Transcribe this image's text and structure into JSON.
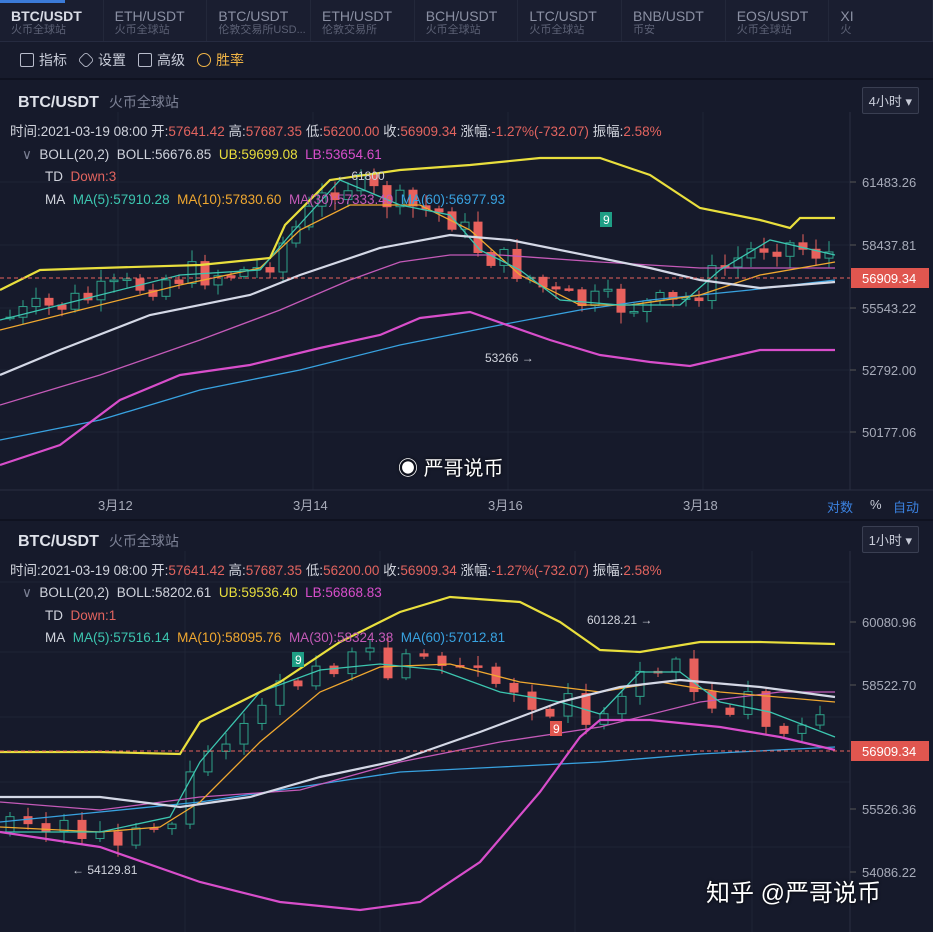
{
  "tabs": [
    {
      "pair": "BTC/USDT",
      "exchange": "火币全球站",
      "active": true
    },
    {
      "pair": "ETH/USDT",
      "exchange": "火币全球站"
    },
    {
      "pair": "BTC/USDT",
      "exchange": "伦敦交易所USD..."
    },
    {
      "pair": "ETH/USDT",
      "exchange": "伦敦交易所"
    },
    {
      "pair": "BCH/USDT",
      "exchange": "火币全球站"
    },
    {
      "pair": "LTC/USDT",
      "exchange": "火币全球站"
    },
    {
      "pair": "BNB/USDT",
      "exchange": "币安"
    },
    {
      "pair": "EOS/USDT",
      "exchange": "火币全球站"
    },
    {
      "pair": "XI",
      "exchange": "火"
    }
  ],
  "toolbar": {
    "indicators": "指标",
    "settings": "设置",
    "advanced": "高级",
    "winrate": "胜率"
  },
  "top": {
    "pair": "BTC/USDT",
    "exchange": "火币全球站",
    "period": "4小时",
    "time_label": "时间:",
    "time": "2021-03-19 08:00",
    "open_label": "开:",
    "open": "57641.42",
    "high_label": "高:",
    "high": "57687.35",
    "low_label": "低:",
    "low": "56200.00",
    "close_label": "收:",
    "close": "56909.34",
    "chg_label": "涨幅:",
    "chg": "-1.27%(-732.07)",
    "amp_label": "振幅:",
    "amp": "2.58%",
    "boll_name": "BOLL(20,2)",
    "boll": "BOLL:56676.85",
    "ub": "UB:59699.08",
    "lb": "LB:53654.61",
    "td_name": "TD",
    "td": "Down:3",
    "ma_name": "MA",
    "ma5": "MA(5):57910.28",
    "ma10": "MA(10):57830.60",
    "ma30": "MA(30):57333.40",
    "ma60": "MA(60):56977.93",
    "price_ticks": [
      "61483.26",
      "58437.81",
      "55543.22",
      "52792.00",
      "50177.06"
    ],
    "current_price": "56909.34",
    "x_ticks": [
      "3月12",
      "3月14",
      "3月16",
      "3月18"
    ],
    "high_marker": "← 61800",
    "low_marker": "53266 →",
    "td_badge": "9",
    "log": "对数",
    "pct": "%",
    "auto": "自动",
    "watermark": "严哥说币"
  },
  "bottom": {
    "pair": "BTC/USDT",
    "exchange": "火币全球站",
    "period": "1小时",
    "time_label": "时间:",
    "time": "2021-03-19 08:00",
    "open_label": "开:",
    "open": "57641.42",
    "high_label": "高:",
    "high": "57687.35",
    "low_label": "低:",
    "low": "56200.00",
    "close_label": "收:",
    "close": "56909.34",
    "chg_label": "涨幅:",
    "chg": "-1.27%(-732.07)",
    "amp_label": "振幅:",
    "amp": "2.58%",
    "boll_name": "BOLL(20,2)",
    "boll": "BOLL:58202.61",
    "ub": "UB:59536.40",
    "lb": "LB:56868.83",
    "td_name": "TD",
    "td": "Down:1",
    "ma_name": "MA",
    "ma5": "MA(5):57516.14",
    "ma10": "MA(10):58095.76",
    "ma30": "MA(30):58324.38",
    "ma60": "MA(60):57012.81",
    "price_ticks": [
      "60080.96",
      "58522.70",
      "55526.36",
      "54086.22"
    ],
    "current_price": "56909.34",
    "high_marker": "60128.21 →",
    "low_marker": "← 54129.81",
    "td_badge_up": "9",
    "td_badge_down": "9"
  },
  "footer_watermark": "知乎 @严哥说币",
  "colors": {
    "up": "#2ea28a",
    "down": "#e8615d",
    "ub": "#e9df3d",
    "boll": "#d4d8e6",
    "lb": "#d84ecb",
    "ma5": "#3cc6b0",
    "ma10": "#f0a830",
    "ma30": "#c45ab8",
    "ma60": "#38a2e0"
  }
}
